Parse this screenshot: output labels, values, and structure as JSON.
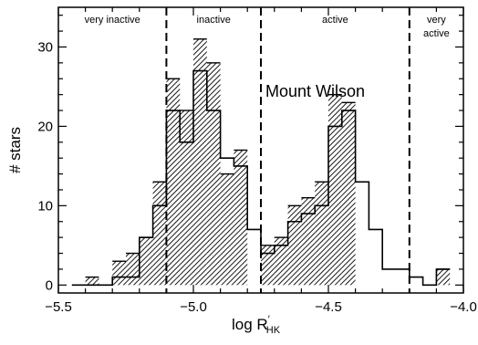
{
  "chart_data": {
    "type": "bar",
    "title": "",
    "annotation": "Mount Wilson",
    "xlabel_main": "log R",
    "xlabel_sup": "′",
    "xlabel_sub": "HK",
    "ylabel": "# stars",
    "xlim": [
      -5.5,
      -4.0
    ],
    "ylim": [
      -1,
      35
    ],
    "bin_width": 0.05,
    "xticks": [
      -5.5,
      -5.0,
      -4.5,
      -4.0
    ],
    "xtick_labels": [
      "−5.5",
      "−5.0",
      "−4.5",
      "−4.0"
    ],
    "yticks": [
      0,
      10,
      20,
      30
    ],
    "ytick_labels": [
      "0",
      "10",
      "20",
      "30"
    ],
    "regions": [
      {
        "label_lines": [
          "very inactive"
        ],
        "from": -5.5,
        "to": -5.1
      },
      {
        "label_lines": [
          "inactive"
        ],
        "from": -5.1,
        "to": -4.75
      },
      {
        "label_lines": [
          "active"
        ],
        "from": -4.75,
        "to": -4.2
      },
      {
        "label_lines": [
          "very",
          "active"
        ],
        "from": -4.2,
        "to": -4.0
      }
    ],
    "dividers": [
      -5.1,
      -4.75,
      -4.2
    ],
    "series": [
      {
        "style": "step-outline",
        "bins": [
          {
            "x0": -5.45,
            "value": 0
          },
          {
            "x0": -5.4,
            "value": 0
          },
          {
            "x0": -5.35,
            "value": 0
          },
          {
            "x0": -5.3,
            "value": 1
          },
          {
            "x0": -5.25,
            "value": 1
          },
          {
            "x0": -5.2,
            "value": 6
          },
          {
            "x0": -5.15,
            "value": 10
          },
          {
            "x0": -5.1,
            "value": 22
          },
          {
            "x0": -5.05,
            "value": 18
          },
          {
            "x0": -5.0,
            "value": 27
          },
          {
            "x0": -4.95,
            "value": 22
          },
          {
            "x0": -4.9,
            "value": 16
          },
          {
            "x0": -4.85,
            "value": 15
          },
          {
            "x0": -4.8,
            "value": 7
          },
          {
            "x0": -4.75,
            "value": 4
          },
          {
            "x0": -4.7,
            "value": 5
          },
          {
            "x0": -4.65,
            "value": 8
          },
          {
            "x0": -4.6,
            "value": 9
          },
          {
            "x0": -4.55,
            "value": 10
          },
          {
            "x0": -4.5,
            "value": 20
          },
          {
            "x0": -4.45,
            "value": 22
          },
          {
            "x0": -4.4,
            "value": 13
          },
          {
            "x0": -4.35,
            "value": 7
          },
          {
            "x0": -4.3,
            "value": 2
          },
          {
            "x0": -4.25,
            "value": 2
          },
          {
            "x0": -4.2,
            "value": 1
          },
          {
            "x0": -4.15,
            "value": 0
          },
          {
            "x0": -4.1,
            "value": 2
          }
        ]
      },
      {
        "style": "hatched",
        "bins": [
          {
            "x0": -5.4,
            "value": 1
          },
          {
            "x0": -5.3,
            "value": 3
          },
          {
            "x0": -5.25,
            "value": 4
          },
          {
            "x0": -5.2,
            "value": 6
          },
          {
            "x0": -5.15,
            "value": 13
          },
          {
            "x0": -5.1,
            "value": 26
          },
          {
            "x0": -5.05,
            "value": 22
          },
          {
            "x0": -5.0,
            "value": 31
          },
          {
            "x0": -4.95,
            "value": 28
          },
          {
            "x0": -4.9,
            "value": 14
          },
          {
            "x0": -4.85,
            "value": 17
          },
          {
            "x0": -4.75,
            "value": 5
          },
          {
            "x0": -4.7,
            "value": 6
          },
          {
            "x0": -4.65,
            "value": 10
          },
          {
            "x0": -4.6,
            "value": 11
          },
          {
            "x0": -4.55,
            "value": 13
          },
          {
            "x0": -4.5,
            "value": 24
          },
          {
            "x0": -4.45,
            "value": 23
          },
          {
            "x0": -4.1,
            "value": 2
          }
        ]
      }
    ]
  }
}
